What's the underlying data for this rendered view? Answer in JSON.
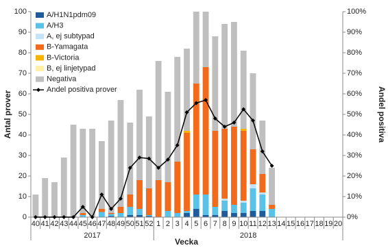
{
  "chart_data": {
    "type": "stacked_bar_line",
    "x_label": "Vecka",
    "y_label": "Antal prover",
    "y2_label": "Andel positiva",
    "year_labels": [
      "2017",
      "2018"
    ],
    "categories": [
      "40",
      "41",
      "42",
      "43",
      "44",
      "45",
      "46",
      "47",
      "48",
      "49",
      "50",
      "51",
      "52",
      "1",
      "2",
      "3",
      "4",
      "5",
      "6",
      "7",
      "8",
      "9",
      "10",
      "11",
      "12",
      "13",
      "14",
      "15",
      "16",
      "17",
      "18",
      "19",
      "20"
    ],
    "ylim": [
      0,
      100
    ],
    "yticks": [
      0,
      10,
      20,
      30,
      40,
      50,
      60,
      70,
      80,
      90,
      100
    ],
    "y2lim": [
      0,
      100
    ],
    "y2ticks": [
      {
        "value": 0,
        "label": "0%"
      },
      {
        "value": 10,
        "label": "10%"
      },
      {
        "value": 20,
        "label": "20%"
      },
      {
        "value": 30,
        "label": "30%"
      },
      {
        "value": 40,
        "label": "40%"
      },
      {
        "value": 50,
        "label": "50%"
      },
      {
        "value": 60,
        "label": "60%"
      },
      {
        "value": 70,
        "label": "70%"
      },
      {
        "value": 80,
        "label": "80%"
      },
      {
        "value": 90,
        "label": "90%"
      },
      {
        "value": 100,
        "label": "100%"
      }
    ],
    "series": [
      {
        "name": "A/H1N1pdm09",
        "color": "#1f5c99",
        "values": [
          0,
          0,
          0,
          0,
          0,
          0,
          0,
          0,
          0.5,
          0,
          1,
          1,
          0.5,
          0,
          0,
          0,
          2,
          4,
          1,
          1,
          3,
          2,
          2,
          3,
          3,
          0,
          null,
          null,
          null,
          null,
          null,
          null,
          null
        ]
      },
      {
        "name": "A/H3",
        "color": "#5bc2e7",
        "values": [
          0,
          0,
          0,
          0,
          0,
          1,
          0,
          2.5,
          1,
          2,
          4,
          3,
          0.5,
          0,
          3,
          2,
          1,
          7,
          10,
          4,
          5,
          4,
          5,
          11,
          8,
          4,
          null,
          null,
          null,
          null,
          null,
          null,
          null
        ]
      },
      {
        "name": "A, ej subtypad",
        "color": "#c5e3f6",
        "values": [
          0,
          0,
          0,
          0,
          0,
          0,
          0,
          0,
          0,
          0,
          0,
          0,
          0,
          0,
          0,
          0,
          0,
          0,
          0,
          0,
          1,
          0,
          1,
          2,
          1,
          0,
          null,
          null,
          null,
          null,
          null,
          null,
          null
        ]
      },
      {
        "name": "B-Yamagata",
        "color": "#f26b1d",
        "values": [
          0,
          0,
          0,
          0,
          0,
          1,
          0,
          1.5,
          0.5,
          3,
          6,
          14,
          13,
          18,
          14,
          25,
          38,
          54,
          62,
          37,
          34,
          38,
          34,
          17,
          9,
          2,
          null,
          null,
          null,
          null,
          null,
          null,
          null
        ]
      },
      {
        "name": "B-Victoria",
        "color": "#f5b400",
        "values": [
          0,
          0,
          0,
          0,
          0,
          0,
          0,
          0,
          0,
          0,
          0,
          0,
          0,
          0,
          0,
          0,
          1,
          0,
          0,
          0,
          0,
          0,
          1,
          0,
          0,
          0,
          null,
          null,
          null,
          null,
          null,
          null,
          null
        ]
      },
      {
        "name": "B, ej linjetypad",
        "color": "#fff0a6",
        "values": [
          0,
          0,
          0,
          0,
          0,
          0,
          0,
          0,
          0,
          0,
          0,
          0,
          0,
          0,
          0,
          0,
          0,
          0,
          0,
          0,
          0,
          0,
          0,
          0,
          0,
          0,
          null,
          null,
          null,
          null,
          null,
          null,
          null
        ]
      },
      {
        "name": "Negativa",
        "color": "#bfbfbf",
        "values": [
          11,
          19,
          17,
          29,
          45,
          41,
          43,
          33,
          45,
          52,
          35,
          44,
          35,
          58,
          44,
          51,
          40,
          52,
          55,
          46,
          51,
          51,
          38,
          37,
          26,
          18,
          null,
          null,
          null,
          null,
          null,
          null,
          null
        ]
      },
      {
        "name": "Andel positiva prover",
        "color": "#000000",
        "axis": "y2",
        "kind": "line",
        "values": [
          0,
          0,
          0,
          0,
          0,
          5,
          0,
          11,
          4,
          9,
          24,
          29,
          28.5,
          24,
          28,
          35,
          51,
          55.5,
          57,
          48,
          44,
          46,
          52.5,
          47,
          32,
          25,
          null,
          null,
          null,
          null,
          null,
          null,
          null
        ]
      }
    ]
  }
}
